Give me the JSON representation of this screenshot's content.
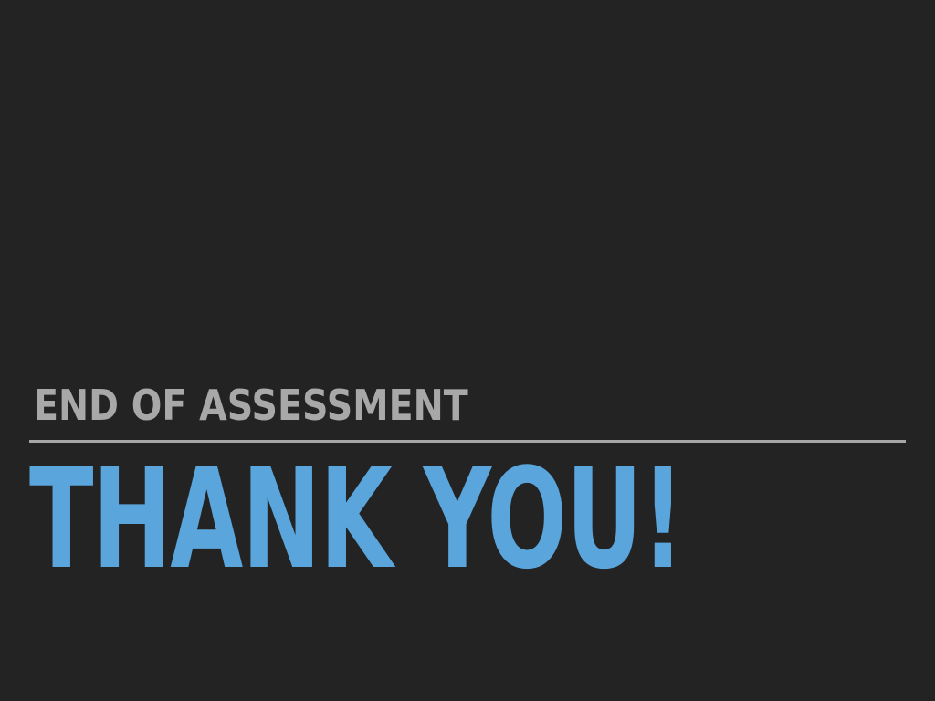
{
  "slide": {
    "subtitle": "END OF ASSESSMENT",
    "title": "THANK YOU!"
  },
  "colors": {
    "background": "#232323",
    "subtitle": "#a8a8a8",
    "divider": "#a6a6a6",
    "title": "#5aa5dc"
  }
}
